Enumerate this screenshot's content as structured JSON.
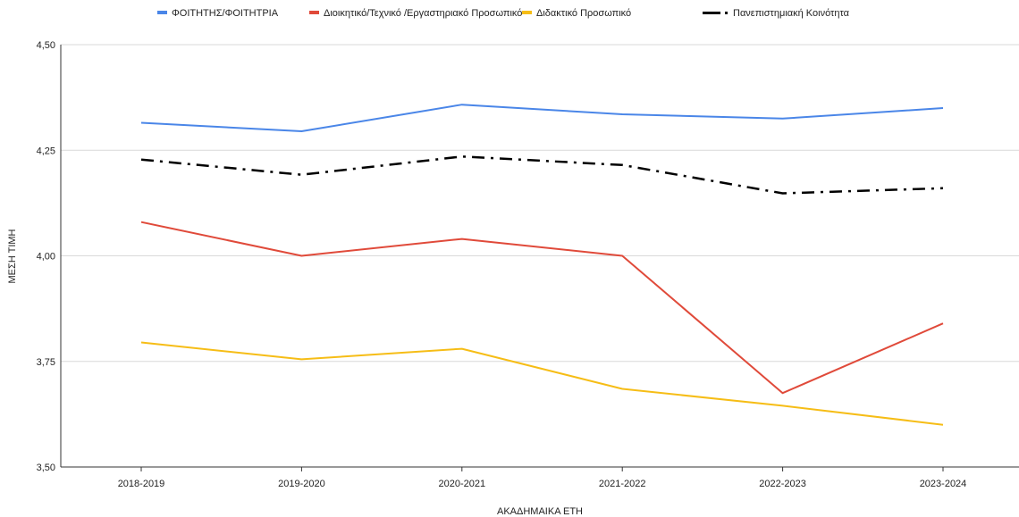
{
  "chart_data": {
    "type": "line",
    "title": "",
    "xlabel": "ΑΚΑΔΗΜΑΙΚΑ ΕΤΗ",
    "ylabel": "ΜΕΣΗ ΤΙΜΗ",
    "categories": [
      "2018-2019",
      "2019-2020",
      "2020-2021",
      "2021-2022",
      "2022-2023",
      "2023-2024"
    ],
    "ylim": [
      3.5,
      4.5
    ],
    "yticks": [
      3.5,
      3.75,
      4.0,
      4.25,
      4.5
    ],
    "ytick_labels": [
      "3,50",
      "3,75",
      "4,00",
      "4,25",
      "4,50"
    ],
    "grid": true,
    "legend_position": "top",
    "series": [
      {
        "name": "ΦΟΙΤΗΤΗΣ/ΦΟΙΤΗΤΡΙΑ",
        "color": "#4a86e8",
        "dash": "solid",
        "values": [
          4.315,
          4.295,
          4.358,
          4.335,
          4.325,
          4.35
        ]
      },
      {
        "name": "Διοικητικό/Τεχνικό /Εργαστηριακό Προσωπικό",
        "color": "#e04a3a",
        "dash": "solid",
        "values": [
          4.08,
          4.0,
          4.04,
          4.0,
          3.675,
          3.84
        ]
      },
      {
        "name": "Διδακτικό Προσωπικό",
        "color": "#f6bd16",
        "dash": "solid",
        "values": [
          3.795,
          3.755,
          3.78,
          3.685,
          3.645,
          3.6
        ]
      },
      {
        "name": "Πανεπιστημιακή Κοινότητα",
        "color": "#000000",
        "dash": "dashdot",
        "values": [
          4.228,
          4.192,
          4.235,
          4.215,
          4.148,
          4.16
        ]
      }
    ]
  }
}
